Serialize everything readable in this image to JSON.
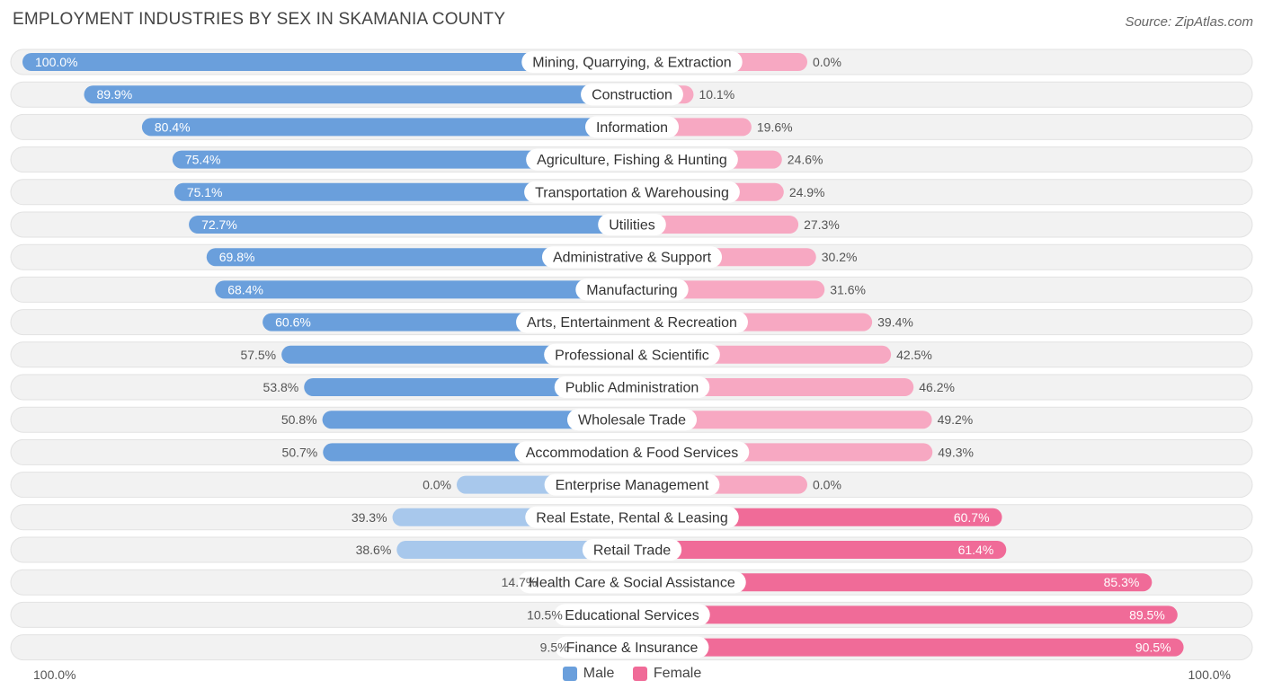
{
  "header": {
    "title": "EMPLOYMENT INDUSTRIES BY SEX IN SKAMANIA COUNTY",
    "source": "Source: ZipAtlas.com"
  },
  "colors": {
    "male_strong": "#6a9fdc",
    "male_light": "#a8c8ec",
    "female_strong": "#f06b98",
    "female_light": "#f7a8c2",
    "row_bg": "#f2f2f2"
  },
  "axis": {
    "left_label": "100.0%",
    "right_label": "100.0%"
  },
  "legend": {
    "male": "Male",
    "female": "Female"
  },
  "chart_data": {
    "type": "bar",
    "title": "EMPLOYMENT INDUSTRIES BY SEX IN SKAMANIA COUNTY",
    "orientation": "horizontal-diverging",
    "xlim": [
      -100,
      100
    ],
    "categories": [
      "Mining, Quarrying, & Extraction",
      "Construction",
      "Information",
      "Agriculture, Fishing & Hunting",
      "Transportation & Warehousing",
      "Utilities",
      "Administrative & Support",
      "Manufacturing",
      "Arts, Entertainment & Recreation",
      "Professional & Scientific",
      "Public Administration",
      "Wholesale Trade",
      "Accommodation & Food Services",
      "Enterprise Management",
      "Real Estate, Rental & Leasing",
      "Retail Trade",
      "Health Care & Social Assistance",
      "Educational Services",
      "Finance & Insurance"
    ],
    "series": [
      {
        "name": "Male",
        "values": [
          100.0,
          89.9,
          80.4,
          75.4,
          75.1,
          72.7,
          69.8,
          68.4,
          60.6,
          57.5,
          53.8,
          50.8,
          50.7,
          0.0,
          39.3,
          38.6,
          14.7,
          10.5,
          9.5
        ],
        "labels": [
          "100.0%",
          "89.9%",
          "80.4%",
          "75.4%",
          "75.1%",
          "72.7%",
          "69.8%",
          "68.4%",
          "60.6%",
          "57.5%",
          "53.8%",
          "50.8%",
          "50.7%",
          "0.0%",
          "39.3%",
          "38.6%",
          "14.7%",
          "10.5%",
          "9.5%"
        ]
      },
      {
        "name": "Female",
        "values": [
          0.0,
          10.1,
          19.6,
          24.6,
          24.9,
          27.3,
          30.2,
          31.6,
          39.4,
          42.5,
          46.2,
          49.2,
          49.3,
          0.0,
          60.7,
          61.4,
          85.3,
          89.5,
          90.5
        ],
        "labels": [
          "0.0%",
          "10.1%",
          "19.6%",
          "24.6%",
          "24.9%",
          "27.3%",
          "30.2%",
          "31.6%",
          "39.4%",
          "42.5%",
          "46.2%",
          "49.2%",
          "49.3%",
          "0.0%",
          "60.7%",
          "61.4%",
          "85.3%",
          "89.5%",
          "90.5%"
        ]
      }
    ],
    "legend_position": "bottom-center"
  }
}
